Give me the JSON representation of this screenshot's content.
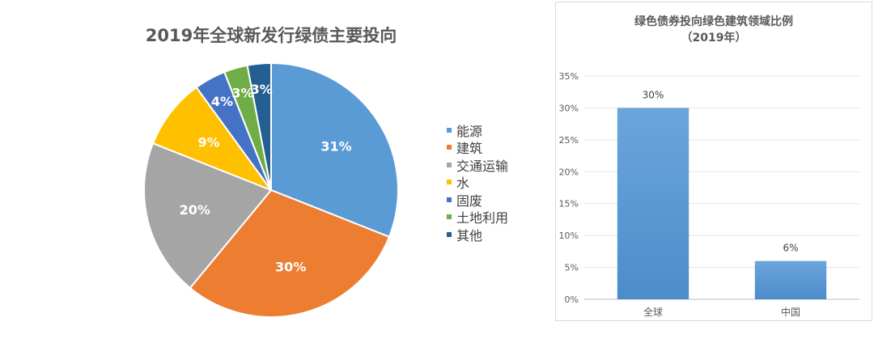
{
  "chart_data": [
    {
      "type": "pie",
      "title": "2019年全球新发行绿债主要投向",
      "legend_position": "right",
      "slices": [
        {
          "label": "能源",
          "value": 31,
          "data_label": "31%",
          "color": "#5b9bd5"
        },
        {
          "label": "建筑",
          "value": 30,
          "data_label": "30%",
          "color": "#ed7d31"
        },
        {
          "label": "交通运输",
          "value": 20,
          "data_label": "20%",
          "color": "#a5a5a5"
        },
        {
          "label": "水",
          "value": 9,
          "data_label": "9%",
          "color": "#ffc000"
        },
        {
          "label": "固废",
          "value": 4,
          "data_label": "4%",
          "color": "#4472c4"
        },
        {
          "label": "土地利用",
          "value": 3,
          "data_label": "3%",
          "color": "#70ad47"
        },
        {
          "label": "其他",
          "value": 3,
          "data_label": "3%",
          "color": "#255e91"
        }
      ]
    },
    {
      "type": "bar",
      "title": "绿色债券投向绿色建筑领域比例",
      "subtitle": "（2019年）",
      "categories": [
        "全球",
        "中国"
      ],
      "values": [
        30,
        6
      ],
      "data_labels": [
        "30%",
        "6%"
      ],
      "ylim": [
        0,
        35
      ],
      "yticks": [
        "0%",
        "5%",
        "10%",
        "15%",
        "20%",
        "25%",
        "30%",
        "35%"
      ],
      "grid": true,
      "bar_color": "#5b9bd5"
    }
  ]
}
